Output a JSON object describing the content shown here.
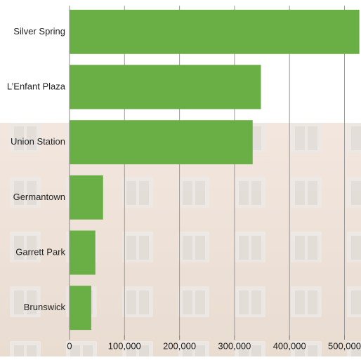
{
  "chart_data": {
    "type": "bar",
    "orientation": "horizontal",
    "categories": [
      "Silver Spring",
      "L’Enfant Plaza",
      "Union Station",
      "Germantown",
      "Garrett Park",
      "Brunswick"
    ],
    "values": [
      527000,
      348000,
      333000,
      61000,
      47000,
      39500
    ],
    "color": "#6aaf45",
    "xlim": [
      0,
      530000
    ],
    "xticks": [
      0,
      {
        "value": 100000,
        "label": "100,000"
      },
      {
        "value": 200000,
        "label": "200,000"
      },
      {
        "value": 300000,
        "label": "300,000"
      },
      {
        "value": 400000,
        "label": "400,000"
      },
      {
        "value": 500000,
        "label": "500,000"
      }
    ],
    "grid": true
  }
}
